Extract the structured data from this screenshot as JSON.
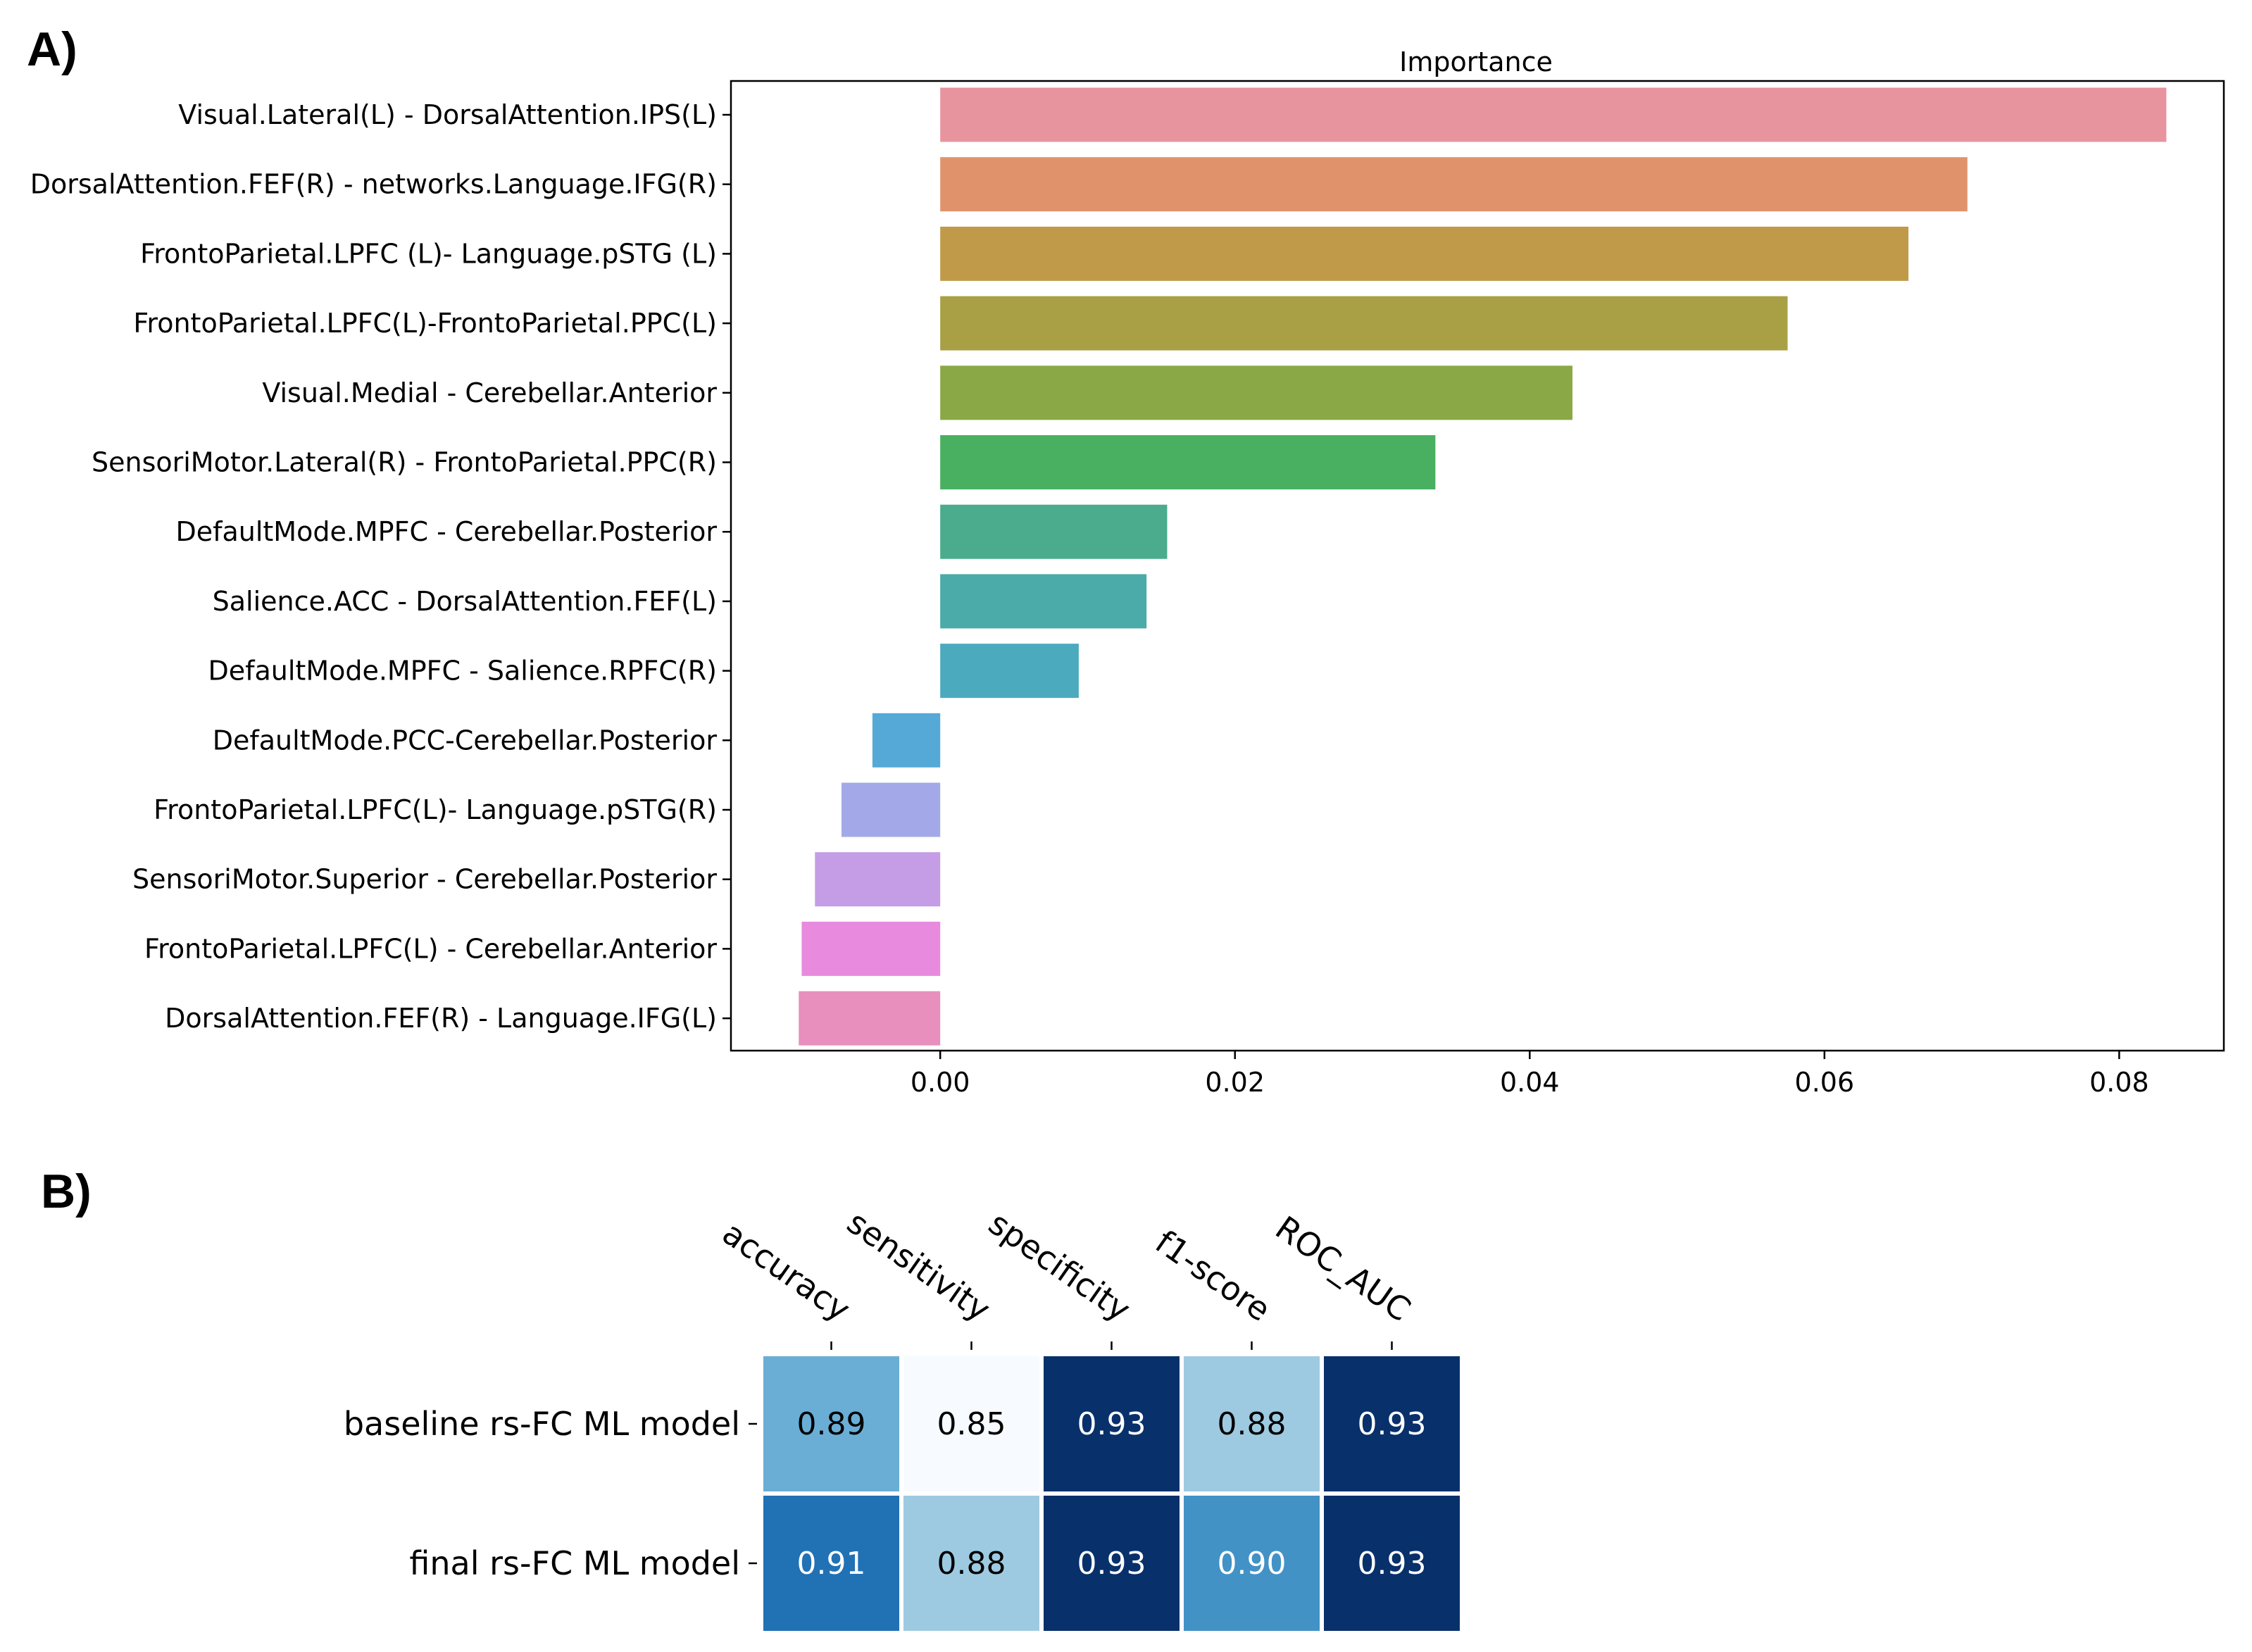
{
  "panel_a_label": "A)",
  "panel_b_label": "B)",
  "chart_data": [
    {
      "type": "bar",
      "orientation": "horizontal",
      "title": "Importance",
      "xlabel": "",
      "ylabel": "",
      "xlim": [
        -0.0142,
        0.0871
      ],
      "xticks": [
        0.0,
        0.02,
        0.04,
        0.06,
        0.08
      ],
      "xtick_labels": [
        "0.00",
        "0.02",
        "0.04",
        "0.06",
        "0.08"
      ],
      "categories": [
        "Visual.Lateral(L) - DorsalAttention.IPS(L)",
        "DorsalAttention.FEF(R) - networks.Language.IFG(R)",
        "FrontoParietal.LPFC (L)- Language.pSTG (L)",
        "FrontoParietal.LPFC(L)-FrontoParietal.PPC(L)",
        "Visual.Medial - Cerebellar.Anterior",
        "SensoriMotor.Lateral(R) - FrontoParietal.PPC(R)",
        "DefaultMode.MPFC - Cerebellar.Posterior",
        "Salience.ACC - DorsalAttention.FEF(L)",
        "DefaultMode.MPFC - Salience.RPFC(R)",
        "DefaultMode.PCC-Cerebellar.Posterior",
        "FrontoParietal.LPFC(L)- Language.pSTG(R)",
        "SensoriMotor.Superior - Cerebellar.Posterior",
        "FrontoParietal.LPFC(L) - Cerebellar.Anterior",
        "DorsalAttention.FEF(R) - Language.IFG(L)"
      ],
      "values": [
        0.0832,
        0.0697,
        0.0657,
        0.0575,
        0.0429,
        0.0336,
        0.0154,
        0.014,
        0.0094,
        -0.0046,
        -0.0067,
        -0.0085,
        -0.0094,
        -0.0096
      ],
      "colors": [
        "#e8949f",
        "#e0936a",
        "#c09a49",
        "#a9a046",
        "#8aa845",
        "#48b060",
        "#4aac8c",
        "#4aaba8",
        "#4caabe",
        "#54a9d6",
        "#a3a9e8",
        "#c59de6",
        "#e88ade",
        "#e88fbd"
      ],
      "grid": false
    },
    {
      "type": "heatmap",
      "columns": [
        "accuracy",
        "sensitivity",
        "specificity",
        "f1-score",
        "ROC_AUC"
      ],
      "rows": [
        "baseline rs-FC ML model",
        "final rs-FC ML model"
      ],
      "values": [
        [
          0.89,
          0.85,
          0.93,
          0.88,
          0.93
        ],
        [
          0.91,
          0.88,
          0.93,
          0.9,
          0.93
        ]
      ],
      "cell_labels": [
        [
          "0.89",
          "0.85",
          "0.93",
          "0.88",
          "0.93"
        ],
        [
          "0.91",
          "0.88",
          "0.93",
          "0.90",
          "0.93"
        ]
      ],
      "cell_colors": [
        [
          "#6aaed6",
          "#f7fbff",
          "#08306b",
          "#9ecae1",
          "#08306b"
        ],
        [
          "#2171b5",
          "#9ecae1",
          "#08306b",
          "#4292c6",
          "#08306b"
        ]
      ],
      "text_colors": [
        [
          "#000000",
          "#000000",
          "#ffffff",
          "#000000",
          "#ffffff"
        ],
        [
          "#ffffff",
          "#000000",
          "#ffffff",
          "#ffffff",
          "#ffffff"
        ]
      ],
      "colormap": "Blues"
    }
  ]
}
